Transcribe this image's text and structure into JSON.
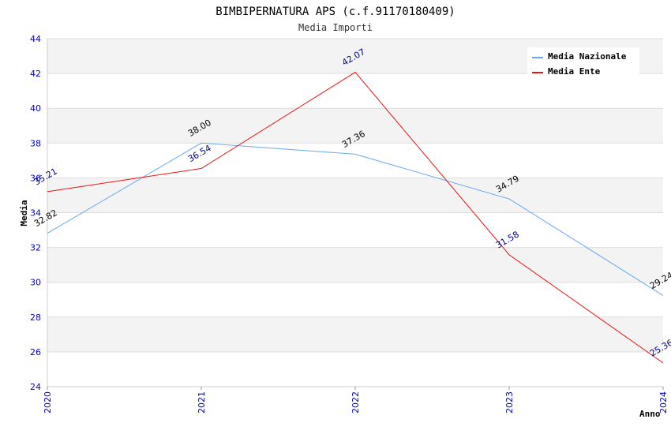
{
  "chart_data": {
    "type": "line",
    "title": "BIMBIPERNATURA APS (c.f.91170180409)",
    "subtitle": "Media Importi",
    "xlabel": "Anno",
    "ylabel": "Media",
    "categories": [
      "2020",
      "2021",
      "2022",
      "2023",
      "2024"
    ],
    "ylim": [
      24,
      44
    ],
    "yticks": [
      "24",
      "26",
      "28",
      "30",
      "32",
      "34",
      "36",
      "38",
      "40",
      "42",
      "44"
    ],
    "grid": true,
    "legend_position": "top-right",
    "series": [
      {
        "name": "Media Nazionale",
        "color": "#66aaee",
        "label_color": "#000000",
        "values": [
          32.82,
          38.0,
          37.36,
          34.79,
          29.24
        ],
        "labels": [
          "32.82",
          "38.00",
          "37.36",
          "34.79",
          "29.24"
        ]
      },
      {
        "name": "Media Ente",
        "color": "#ee1111",
        "label_color": "#000088",
        "values": [
          35.21,
          36.54,
          42.07,
          31.58,
          25.36
        ],
        "labels": [
          "35.21",
          "36.54",
          "42.07",
          "31.58",
          "25.36"
        ]
      }
    ]
  }
}
